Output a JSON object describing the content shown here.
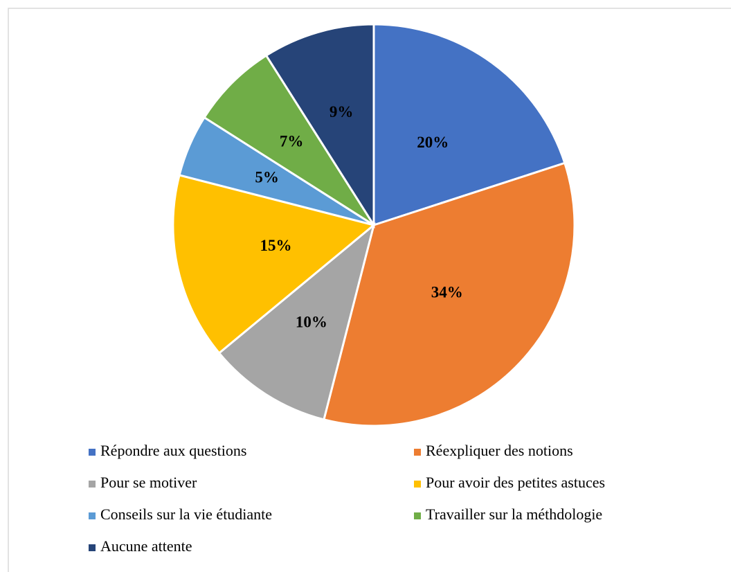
{
  "chart_data": {
    "type": "pie",
    "categories": [
      "Répondre aux questions",
      "Réexpliquer des notions",
      "Pour se motiver",
      "Pour avoir des petites astuces",
      "Conseils sur la vie étudiante",
      "Travailler sur la méthdologie",
      "Aucune attente"
    ],
    "values": [
      20,
      34,
      10,
      15,
      5,
      7,
      9
    ],
    "value_labels": [
      "20%",
      "34%",
      "10%",
      "15%",
      "5%",
      "7%",
      "9%"
    ],
    "colors": [
      "#4472c4",
      "#ed7d31",
      "#a5a5a5",
      "#ffc000",
      "#5b9bd5",
      "#70ad47",
      "#264478"
    ],
    "legend": "bottom"
  }
}
